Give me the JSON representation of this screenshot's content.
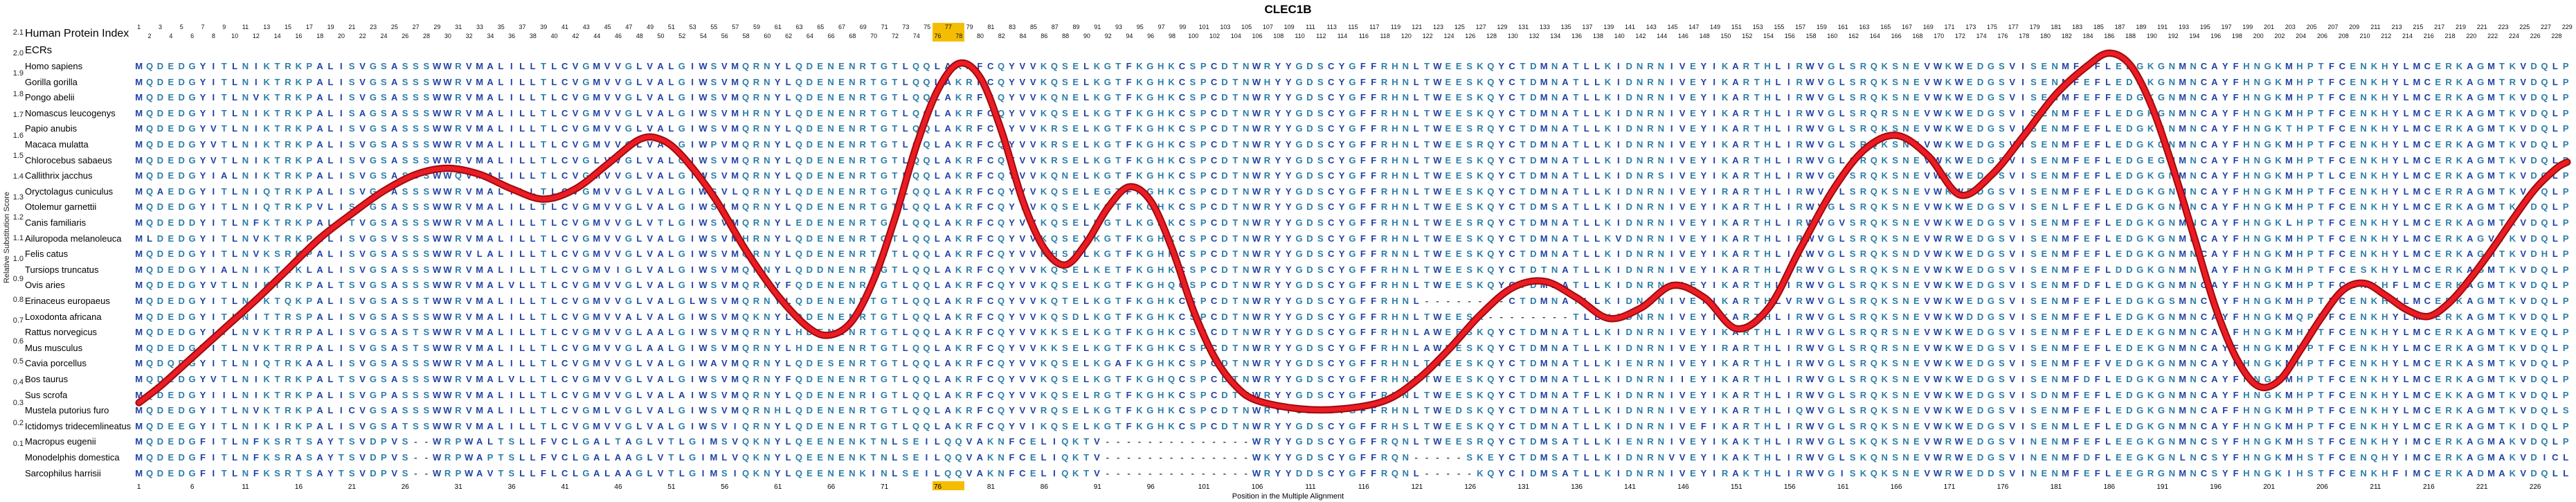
{
  "title": "CLEC1B",
  "left_panel": {
    "index_label": "Human Protein Index",
    "ecrs_label": "ECRs"
  },
  "axes": {
    "y_label": "Relative Substitution Score",
    "y_ticks": [
      2.1,
      2.0,
      1.9,
      1.8,
      1.7,
      1.6,
      1.5,
      1.4,
      1.3,
      1.2,
      1.1,
      1.0,
      0.9,
      0.8,
      0.7,
      0.6,
      0.5,
      0.4,
      0.3,
      0.2,
      0.1
    ],
    "y_range": [
      0.1,
      2.1
    ],
    "x_label": "Position in the Multiple Alignment",
    "x_ticks": [
      1,
      6,
      11,
      16,
      21,
      26,
      31,
      36,
      41,
      46,
      51,
      56,
      61,
      66,
      71,
      76,
      81,
      86,
      91,
      96,
      101,
      106,
      111,
      116,
      121,
      126,
      131,
      136,
      141,
      146,
      151,
      156,
      161,
      166,
      171,
      176,
      181,
      186,
      191,
      196,
      201,
      206,
      211,
      216,
      221,
      226
    ]
  },
  "alignment": {
    "num_columns": 229,
    "position_numbers": {
      "from": 1,
      "to": 229,
      "layout": "odd numbers on upper row, even numbers on lower row"
    },
    "ecr_marker": {
      "start_column": 76,
      "end_column": 78,
      "color": "#F5BD02"
    },
    "residue_colors": {
      "hydrophobic": "#1F41A3",
      "polar": "#2C7DA8",
      "gap": "#4A4A4A"
    },
    "hydrophobic_residues": "ACFILMVWY",
    "species": [
      {
        "name": "Homo sapiens",
        "sequence": "MQDEDGYITLNIKTRKPALISVGSASSSWWRVMALILLTLCVGMVVGLVALGIWSVMQRNYLQDENENRTGTLQQLAKRFCQYVVKQSELKGTFKGHKCSPCDTNWRYYGDSCYGFFRHNLTWEESKQYCTDMNATLLKIDNRNIVEYIKARTHLIRWVGLSRQKSNEVWKWEDGSVISENMFEFLEDGKGNMNCAYFHNGKMHPTFCENKHYLMCERKAGMTKVDQLP"
      },
      {
        "name": "Gorilla gorilla",
        "sequence": "MQDEDGYITLNIKTRKPALISVGSASSSWWRVMALILLTLCVGMVVGLVALGIWSVMQRNYLQDENENRTGTLQQLAKRFCQYVVKQSELKGTFKGHKCSPCDTNWHYYGDSCYGFFRHNLTWEESKQYCTDMNATLLKIDNRNIVEYIKARTHLIRWVGLSRQKSNEVWKWEDGSVISENMFEFLEDGKGNMNCAYFHNGKMHPTFCENKHYLMCERKAGMTRVDQLP"
      },
      {
        "name": "Pongo abelii",
        "sequence": "MQDEDGYITLNVKTRKPALISVGSASSSWWRVMALILLTLCVGMVVGLVALGIWSVMQRNYLQDENENRTGTLQQLAKRFCQYVVKQNELKGTFKGHKCSPCDTNWRYYGDSCYGFFRHNLTWEESKQYCTDMNATLLKIDNRNIVEYIKARTHLIRWVGLSRQKSNEVWKWEDGSVISENMFEFFEDGKGNMNCAYFHNGKMHPTFCENKHYLMCERKAGMTKVDQLP"
      },
      {
        "name": "Nomascus leucogenys",
        "sequence": "MQDEDGYITLNIKTRKPALISAGSASSSWWRVMALILLTLCVGMVVGLVALGIWSVMHRNYLQDENENRTGTLQQLAKRFCQYVVKQSELKGTFKGHKCSPCDTNWRYYGDSCYGFFRHNLTWEESKQYCTDMNATLLKIDNRNIVEYIKARTHLIRWVGLSRQRSNEVWKWEDGSVISENMFEFLEDGKGNMNCAYFHNGKMHPTFCENKHYLMCERKAGMTKVDQLP"
      },
      {
        "name": "Papio anubis",
        "sequence": "MQDEDGYVTLNIKTRKPALISVGSASSSWWRVMALILLTLCVGMVVGLVALGIWSVMQRNYLQDENENRTGTLQQLAKRFCQYVVKRSELKGTFKGHKCSPCDTNWRYYGDSCYGFFRHNLTWEESRQYCTDMNATLLKIDNRNIVEYIKARTHLIRWVGLSRQKSNEVWKWEDGSVISENMFEFLEDGKGNMNCAYFHNGKTHPTFCENKHYLMCERKAGMTKVDQLP"
      },
      {
        "name": "Macaca mulatta",
        "sequence": "MQDEDGYVTLNIKTRKPALISVGSASSSWWRVMALILLTLCVGMVVGLVALGIWPVMQRNYLQDENENRTGTLQQLAKRFCQYVVKRSELKGTFKGHKCSPCDTNWRYYGDSCYGFFRHNLTWEESRQYCTDMNATLLKIDNRNIVEYIKARTHLIRWVGLSRQKSNEVWKWEDGSVISENMFEFLEDGKGNMNCAYFHNGKMHPTFCENKHYLMCERKAGMTKVDQLP"
      },
      {
        "name": "Chlorocebus sabaeus",
        "sequence": "MQDEDGYVTLNIKTRKPALISVGSASSSWWRVMALILLTLCVGLVVGLVALGIWSVMQRNYLQDENENRTGTLQQLAKRFCQYVVKRSELKGTFKGHKCSPCDTNWRYYGDSCYGFFRHNLTWEESKQYCTDMNATLLKIDNRNIVEYIKARTHLIRWVGLSRQKSNEVWKWEDGSVISENMFEFLEDGEGNMNCAYFHNGKMHPTFCENKHYLMCERKAGMTKVDQLP"
      },
      {
        "name": "Callithrix jacchus",
        "sequence": "MQDEDGYIALNIKTRKPALISVGSASSSWWQVMALILLTLCVGMVVGLVALGIWSVMQRNYLQDENENRTGTLQQLAKRFCQYVVKQNELKGTFKGHKCSPCDTNWRYYGDSCYGFFRHNLTWEESKQYCTDMNATLLKIDNRSIVEYIKARTHLIRWVGLSRQKSNEVWKWEDGSVISENMFEFLEDGKGNMNCAYFHNGKMHPTLCENKHYLMCERKAGMTKVDQLP"
      },
      {
        "name": "Oryctolagus cuniculus",
        "sequence": "MQAEDGYITLNIQTRKPALISVGPASSSWWRVMALILLTLCVGMVVGLVALGIWSVLQRNYLQDENENRTGTLQQLAKRFCQYVVKQSELEGTFKGHKCSPCDTNWRYYGDSCYGFFRHNLTWEESKQYCTDMNATLLKIDNRNIVEYIRARTHLIRWVGLSRQKSNEVWKWEDGSVISENMFEFLEDGKGNMNCAYFHNGKMHPTFCENKHYLMCERRAGMTKVDQLP"
      },
      {
        "name": "Otolemur garnettii",
        "sequence": "MQDEDGYITLNIQTRKPVLISVGSASSSWWRVMALILLTLCVGMVVGLVALGIWSIMQRNYLQDENENRTGTLQQLAKRFCQYIVKQSELKGTFKGHKCSPCDTNWRYYGDSCYGFFRHNLTWEESKQYCTDMSATLLKIDNRNIVEYIKARTHLIRWVGLSRQKSNEVWKWEDGSVISENLFEFLEDGKGNMNCAYFHNGKMHPTFCENKHYLMCERKAGMTKVDQLP"
      },
      {
        "name": "Canis familiaris",
        "sequence": "MQDEDDYITLNFKTRKPALITVGSASSSWWRVMALILLTLCVGMVVGLVTLGIWSVMQRNYLEDENENRTGTLQQLAKRFCQYVVKQSELKGTLKGHKCSPCDTNWRYYGDSCYGFFRHNLTWEESRQYCTDMNATLLKIDNRNIVEYIKARTHLIRWVGVSRQKSNEVWKWEDGSVISENMFEFLEDGKGNMNCAYFHNGKLHPTFCENKHYLMCERKAGMTKVDQLP"
      },
      {
        "name": "Ailuropoda melanoleuca",
        "sequence": "MLDEDGYITLNVKTRKPALISVGSVSSSWWRVMALILLTLCVGMVVGLVALGIWSVMHRNYLQDENENRTGTLQQLAKRFCQYVVKQSEVKGTFKGHKCSPCDTNWRYYGDSCYGFFRHNLTWEESKQYCTDMNATLLKVDNRNIVEYIKARTHLIRWVGLSRQKSNEVWRWEDGSVISENMFEFLEDGKGNMNCAYFHNGKMHPTFCENKHYLMCERKAGVTKVDQLP"
      },
      {
        "name": "Felis catus",
        "sequence": "MQDEDGYITLNVKSRKPALISVGSASSSWWRVLALILLTLCVGMVVGLVALGIWSVMQRNYLQDENENRTGTLQQLAKRFCQYVVKHSELKGTFKGHKCSPCDTNWRYYGDSCYGFFRNNLTWEESKQYCTDMNATLLKIDNRNIVEYIKARTHLIRWVGLSRQKSNDVWKWEDGSVISENMFEFLEDGKGNMNCAYFHNGKMHPTFCENKHYLMCERKAGMTKVDHLP"
      },
      {
        "name": "Tursiops truncatus",
        "sequence": "MQDEDGYIALNIKTRKLALISVGSASSSWWRVMALILLTLCVGMVIGLVALGIWSVMQRNYLQDDNENRTGTLQQLAKRFCQYVVKQSELKETFKGHKCSPCDTNWRYYGDSCYGFFRHNLTWEESKQYCTDTNATLLKIDNRNIVEYIKARTHLIRWVGLSRQKSNEVWKWEDGSVISENMFEFLDDGKGNMNCAYFHNGKMHPTFCESKHYLMCERKAGMTKVDQLP"
      },
      {
        "name": "Ovis aries",
        "sequence": "MQDEDGYVTLNIKTRKPALTSVGSASSSWWRVMALVLLTLCVGMVVGLVALGIWSVMQRNYFQDENENRTGTLQQLAKRFCQYVVKQSELKGTFKGHQCSPCDTNWRYYGDSCYGFFRHNLTWEESKQYCTDMNATLLKIDNRNIIEYIKARTHLIRWVGLSRQKSNEVWKWEDGSVISENMFDFLEDGKGNMNCAYFHNGKMHPTFCENKHFLMCERKAGMTKVDQLP"
      },
      {
        "name": "Erinaceus europaeus",
        "sequence": "MQDEDGYITLNVKTQKPALISVGSASSTWWRVMALILLTLCVGMVVGLVALGLWSVMQRNYLQDENENRTGTLQQLAKRFCQYVVKQTELKGTFKGHKCSPCDTNWRYYGDSCYGFFRHNL--------CTDMNATLLKIDNRNIVEYIKARTHLVRWVGLSRQKSNEVWKWEDGSVISENMFEFLEDGKGSMNCAYFHNGKMHPTFCENKHYLMCERKAGMTKVDQLP"
      },
      {
        "name": "Loxodonta africana",
        "sequence": "MQDEDGYITLNITTRSPALISVGSASSSWWRVMALILLTLCVGMVVALVALGIWSVMQKNYLQDENENRTGTLQQLAKRFCQYVVKQSDLKGTFKGHKCSPCDTNWRYYGDSCYGFFRHNLTWEESK--------TLLKIDNRNIVEYIKARTHLIRWVGLSRQKSNEVWKWDDGSVISENMFEFLEDGKGNMNCAYFHNGKMQPTFCENKHYLMCERKAGMTKVDQLP"
      },
      {
        "name": "Rattus norvegicus",
        "sequence": "MQDEDGYITLNVKTRRPALISVGSASTSWWRVMALILLTLCVGMVVGLAALGIWSVMQRNYLHDENENRTGTLQQLAKRFCQYVVKKSELKGTFKGHKCSPCDTNWRYYGDSCYGFFRHNLAWEESKQYCTDMNATLLKIDNRNIVEYIKARTHLIRWVGLSRQRSNEVWKWEDGSVISENMFEFLEDEKGNMNCAYFHNGKMHPTFCENKHYLMCERKAGMTKVEQLP"
      },
      {
        "name": "Mus musculus",
        "sequence": "MQDEDGYITLNVKTRRPALISVGSASTSWWRVMALILLTLCVGMVVGLAALGIWSVMQRNYLHDENENRTGTLQQLAKRFCQYVVKKSELKGTFKGHKCSPCDTNWRYYGDSCYGFFRHNLAWEESKQYCTDMNATLLKIDNRNIVEYIRARTHLIRWVGLSRQRSNEVWKWEDGSVISENMFEFLEDEKGNMNCAYFHNGKMHPTFCENKHYLMCERKAGMTKVDQLP"
      },
      {
        "name": "Cavia porcellus",
        "sequence": "MQDQDGYITLNIQTRKAALISVGSASSSWWRVMALILLTLCVGMVVGLVALGIWAVMQRNYLQDESENRTGTLQQLAKRFCQYVVKQSELKGAFKGHKCSPCDTNWRYYGDSCYGFFRHNLTWEESKQYCTDMNATLLKIENRNIVEYIKARTHLIRWVGLSRQKSNEVWKWEDGSVISENMFEFVEDGKGNMNCAYFHNGKMHPTFCENKHYLMCERKASMTKVDQLP"
      },
      {
        "name": "Bos taurus",
        "sequence": "MQDEDGYVTLNIKTRKPALTSVGSASSSWWRVMALVLLTLCVGMVVGLVALGIWSVMQRNYFQDENENRTGTLQQLAKRFCQYVVKQSELKGTFKGHQCSPCDTNWRYYGDSCYGFFRHNLTWEESKQYCTDMNATLLKIDNRNIIEYIKARTHLIRWVGLSRQKSNEVWKWEDGSVISENMFDFLEDGKGNMNCAYFHNGRMHPTFCENKHYLMCERKAGMTKVDQLP"
      },
      {
        "name": "Sus scrofa",
        "sequence": "MQDEDGYIILNIKTRKPALISVGPASSSWWRVMALILLTLCVGMVVGLVALAIWSVMQRNYLQDENENRIGTLQQLAKRFCQYVVKQSELRGTFKGHKCSPCDTNWRYYGDSCYGFFRHNLTWEESKQYCTDMNATFLKIDNRNIVEYIKARTHLIRWVGLSRQKSNEVWKWEDGSVISDNMFEFLEDGKGNMNCAYFHNGKMHPTFCENKHYLMCEKKAGMTKVDQLP"
      },
      {
        "name": "Mustela putorius furo",
        "sequence": "MQDEDGYITLNVKTRKPALICVGSASSSWWRVMALILLTLCVGMLVGLVALGIWSVMQRNHLQDENENRTGTLQQLAKRFCQYVVRQSELKGTFKGHKCSPCDTNWRYYGDSCYGFFRHNLTWEDSKQYCTDMNATLLKIDNRNIVEYIKARTHLIQWVGLSRQKSNEVWKWEDGSVISENMFEFLEDGKGNMNCAFFHNGKMHPTFCENKHYLMCERKAGMTKVDQLS"
      },
      {
        "name": "Ictidomys tridecemlineatus",
        "sequence": "MQDEEGYITLNIKIRKPALISVGSATSSWWRVMALILLTLCVGMVVGLVALGIWSVIQRNYLQDENENRTGTLQQLAKRFCQYVIKQSELKGTFKGHKCSPCDTNWRYYGDSCYGFFRHSLTWEESKQYCTDMNATLLKIDNRNIVEFIKARTHLIRWVGLSRQKSNEVWKWEDGSVISENMLEFLEDGKGNMNCAYFHNGKMHPTFCENKHYLMCERKAGMTKIDQLP"
      },
      {
        "name": "Macropus eugenii",
        "sequence": "MQDEDGFITLNFKSRTSAYTSVDPVS--WRPWALTSLLFVCLGALTAGLVTLGIMSVQKNYLQEENENKTNLSEILQQVAKNFCELIQKTV--------------WRYYGDSCYGFFRQNLTWEESRQYCTDMSATLLKIENRNIVEYIKAKTHLIRWVGLSKQKSNEVWRWEDGSVINENMFEFLEEGKGNMNCSYFHNGKMHSTFCENKHYIMCERKAGMAKVDQLP"
      },
      {
        "name": "Monodelphis domestica",
        "sequence": "MQDEDGFITLNFKSRASAYTSVDPVS--WRPWAPTSLLFVCLGALAAGLVTLGIMLVQKNYLQEENENKTNLSEILQQVAKNFCELIQKTV--------------WKYYGDSCYGFFRQN-----SKEYCTDMSATLLKIDNRNVVEYIKAKTHLIRWVGLSKQNSNEVWRWEDGSVINENMFDFLEEGKGNLNCSYFHNGKMHSTFCENQHYIMCERKAGMAKVDICL"
      },
      {
        "name": "Sarcophilus harrisii",
        "sequence": "MQDEDGFITLNFKSRTSAYTSVDPVS--WRPWAVTSLLFLCLGALAAGLVTLGIMSIQKNYLQEENENKINLSEILQQVAKNFCELIQKTV--------------WRYYDDSCYGFFRQNL-----KQYCIDMSATLLKIDNRNIVEYIRAKTHLIRWVGISKQKSNEVWRWEDDSVINENMFEFLEEGRGNMNCSYFHNGKIHSTFCENKHFIMCERKADMAKVDQLL"
      }
    ]
  },
  "chart_data": {
    "type": "line",
    "title": "CLEC1B",
    "xlabel": "Position in the Multiple Alignment",
    "ylabel": "Relative Substitution Score",
    "xlim": [
      1,
      229
    ],
    "ylim": [
      0.1,
      2.1
    ],
    "legend": "none",
    "grid": "off",
    "line_color": "#EC1C24",
    "line_outline_color": "#9B0B0F",
    "x": [
      1,
      3,
      6,
      9,
      12,
      15,
      18,
      21,
      24,
      27,
      30,
      33,
      36,
      39,
      42,
      45,
      48,
      50,
      52,
      55,
      58,
      61,
      64,
      66,
      68,
      70,
      72,
      74,
      76,
      78,
      80,
      82,
      84,
      86,
      88,
      90,
      92,
      94,
      96,
      98,
      100,
      102,
      104,
      106,
      110,
      114,
      118,
      121,
      124,
      127,
      130,
      133,
      136,
      139,
      142,
      145,
      148,
      151,
      154,
      157,
      160,
      163,
      166,
      169,
      172,
      175,
      178,
      181,
      184,
      186,
      188,
      190,
      192,
      194,
      196,
      198,
      200,
      202,
      204,
      206,
      208,
      210,
      212,
      214,
      216,
      218,
      220,
      222,
      224,
      226,
      228,
      229
    ],
    "y": [
      0.3,
      0.38,
      0.52,
      0.66,
      0.8,
      0.95,
      1.1,
      1.22,
      1.33,
      1.41,
      1.44,
      1.41,
      1.34,
      1.29,
      1.34,
      1.46,
      1.58,
      1.58,
      1.5,
      1.3,
      1.04,
      0.82,
      0.66,
      0.63,
      0.7,
      0.9,
      1.2,
      1.55,
      1.82,
      1.95,
      1.88,
      1.62,
      1.28,
      1.05,
      0.97,
      1.08,
      1.25,
      1.35,
      1.28,
      1.05,
      0.75,
      0.52,
      0.38,
      0.31,
      0.27,
      0.27,
      0.31,
      0.41,
      0.56,
      0.73,
      0.86,
      0.89,
      0.81,
      0.71,
      0.76,
      0.87,
      0.81,
      0.66,
      0.76,
      1.05,
      1.33,
      1.53,
      1.6,
      1.5,
      1.31,
      1.41,
      1.6,
      1.8,
      1.94,
      2.0,
      1.94,
      1.74,
      1.44,
      1.1,
      0.76,
      0.51,
      0.38,
      0.41,
      0.56,
      0.72,
      0.85,
      0.88,
      0.82,
      0.75,
      0.72,
      0.79,
      0.91,
      1.05,
      1.2,
      1.34,
      1.44,
      1.47
    ]
  }
}
